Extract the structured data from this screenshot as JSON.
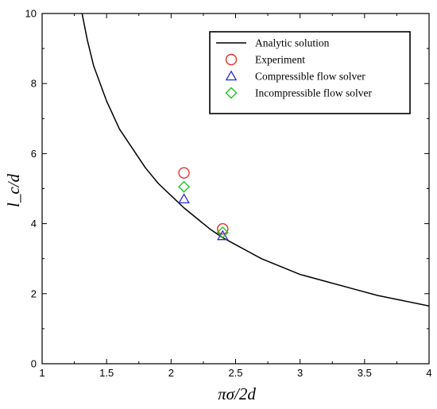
{
  "chart_data": {
    "type": "scatter",
    "title": "",
    "xlabel": "πσ/2d",
    "ylabel": "l_c/d",
    "xlim": [
      1,
      4
    ],
    "ylim": [
      0,
      10
    ],
    "xticks": [
      "1",
      "1.5",
      "2",
      "2.5",
      "3",
      "3.5",
      "4"
    ],
    "yticks": [
      "0",
      "2",
      "4",
      "6",
      "8",
      "10"
    ],
    "grid": false,
    "legend_position": "top-right",
    "series": [
      {
        "name": "Analytic solution",
        "kind": "line",
        "color": "#000000",
        "x": [
          1.31,
          1.35,
          1.4,
          1.5,
          1.6,
          1.7,
          1.8,
          1.9,
          2.0,
          2.1,
          2.2,
          2.3,
          2.4,
          2.5,
          2.6,
          2.7,
          2.8,
          2.9,
          3.0,
          3.2,
          3.4,
          3.6,
          3.8,
          4.0
        ],
        "y": [
          10.0,
          9.25,
          8.5,
          7.5,
          6.7,
          6.15,
          5.6,
          5.15,
          4.8,
          4.45,
          4.15,
          3.85,
          3.6,
          3.4,
          3.2,
          3.0,
          2.85,
          2.7,
          2.55,
          2.35,
          2.15,
          1.95,
          1.8,
          1.65
        ]
      },
      {
        "name": "Experiment",
        "kind": "marker",
        "marker": "circle",
        "color": "#e8302a",
        "x": [
          2.1,
          2.4
        ],
        "y": [
          5.45,
          3.85
        ]
      },
      {
        "name": "Compressible flow solver",
        "kind": "marker",
        "marker": "triangle",
        "color": "#2b2bd6",
        "x": [
          2.1,
          2.4
        ],
        "y": [
          4.7,
          3.65
        ]
      },
      {
        "name": "Incompressible flow solver",
        "kind": "marker",
        "marker": "diamond",
        "color": "#1fc41f",
        "x": [
          2.1,
          2.4
        ],
        "y": [
          5.05,
          3.75
        ]
      }
    ]
  }
}
